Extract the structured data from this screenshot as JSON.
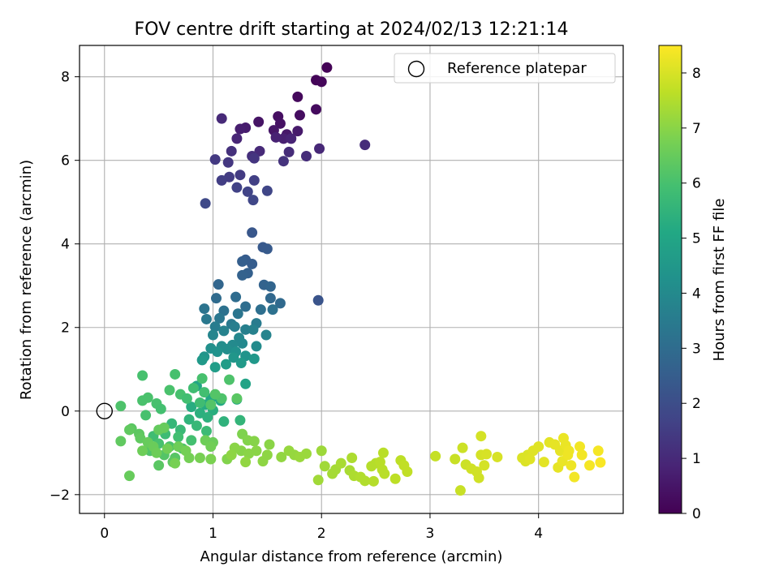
{
  "chart_data": {
    "type": "scatter",
    "title": "FOV centre drift starting at 2024/02/13 12:21:14",
    "xlabel": "Angular distance from reference (arcmin)",
    "ylabel": "Rotation from reference (arcmin)",
    "xlim": [
      -0.23,
      4.78
    ],
    "ylim": [
      -2.45,
      8.75
    ],
    "xticks": [
      0,
      1,
      2,
      3,
      4
    ],
    "yticks": [
      -2,
      0,
      2,
      4,
      6,
      8
    ],
    "xtick_labels": [
      "0",
      "1",
      "2",
      "3",
      "4"
    ],
    "ytick_labels": [
      "−2",
      "0",
      "2",
      "4",
      "6",
      "8"
    ],
    "grid": true,
    "legend": {
      "location": "upper right",
      "entries": [
        "Reference platepar"
      ]
    },
    "reference_point": {
      "x": 0,
      "y": 0,
      "label": "Reference platepar",
      "marker": "open-circle"
    },
    "colorbar": {
      "label": "Hours from first FF file",
      "range": [
        0,
        8.5
      ],
      "ticks": [
        0,
        1,
        2,
        3,
        4,
        5,
        6,
        7,
        8
      ],
      "tick_labels": [
        "0",
        "1",
        "2",
        "3",
        "4",
        "5",
        "6",
        "7",
        "8"
      ],
      "colormap": "viridis"
    },
    "points": [
      {
        "x": 2.05,
        "y": 8.22,
        "c": 0.05
      },
      {
        "x": 1.95,
        "y": 7.92,
        "c": 0.1
      },
      {
        "x": 2.0,
        "y": 7.88,
        "c": 0.15
      },
      {
        "x": 1.78,
        "y": 7.52,
        "c": 0.2
      },
      {
        "x": 1.95,
        "y": 7.22,
        "c": 0.25
      },
      {
        "x": 1.8,
        "y": 7.08,
        "c": 0.3
      },
      {
        "x": 1.6,
        "y": 7.05,
        "c": 0.35
      },
      {
        "x": 1.62,
        "y": 6.88,
        "c": 0.4
      },
      {
        "x": 1.42,
        "y": 6.92,
        "c": 0.45
      },
      {
        "x": 1.56,
        "y": 6.72,
        "c": 0.5
      },
      {
        "x": 1.68,
        "y": 6.62,
        "c": 0.55
      },
      {
        "x": 1.78,
        "y": 6.7,
        "c": 0.6
      },
      {
        "x": 1.3,
        "y": 6.78,
        "c": 0.65
      },
      {
        "x": 1.25,
        "y": 6.75,
        "c": 0.7
      },
      {
        "x": 1.65,
        "y": 6.52,
        "c": 0.75
      },
      {
        "x": 1.58,
        "y": 6.55,
        "c": 0.8
      },
      {
        "x": 1.72,
        "y": 6.52,
        "c": 0.85
      },
      {
        "x": 1.22,
        "y": 6.52,
        "c": 0.9
      },
      {
        "x": 1.98,
        "y": 6.28,
        "c": 0.95
      },
      {
        "x": 1.43,
        "y": 6.22,
        "c": 1.0
      },
      {
        "x": 1.7,
        "y": 6.2,
        "c": 1.05
      },
      {
        "x": 1.86,
        "y": 6.1,
        "c": 1.1
      },
      {
        "x": 1.36,
        "y": 6.1,
        "c": 1.15
      },
      {
        "x": 1.17,
        "y": 6.22,
        "c": 1.2
      },
      {
        "x": 1.08,
        "y": 7.0,
        "c": 1.0
      },
      {
        "x": 2.4,
        "y": 6.37,
        "c": 1.1
      },
      {
        "x": 1.65,
        "y": 5.98,
        "c": 1.25
      },
      {
        "x": 1.38,
        "y": 6.05,
        "c": 1.3
      },
      {
        "x": 1.14,
        "y": 5.95,
        "c": 1.35
      },
      {
        "x": 1.02,
        "y": 6.02,
        "c": 1.4
      },
      {
        "x": 1.25,
        "y": 5.65,
        "c": 1.45
      },
      {
        "x": 1.15,
        "y": 5.6,
        "c": 1.5
      },
      {
        "x": 1.08,
        "y": 5.52,
        "c": 1.55
      },
      {
        "x": 1.38,
        "y": 5.52,
        "c": 1.6
      },
      {
        "x": 1.22,
        "y": 5.35,
        "c": 1.65
      },
      {
        "x": 1.32,
        "y": 5.25,
        "c": 1.7
      },
      {
        "x": 1.5,
        "y": 5.27,
        "c": 1.75
      },
      {
        "x": 1.37,
        "y": 5.05,
        "c": 1.8
      },
      {
        "x": 0.93,
        "y": 4.97,
        "c": 1.85
      },
      {
        "x": 1.36,
        "y": 4.27,
        "c": 2.3
      },
      {
        "x": 1.46,
        "y": 3.92,
        "c": 2.35
      },
      {
        "x": 1.5,
        "y": 3.88,
        "c": 2.4
      },
      {
        "x": 1.3,
        "y": 3.62,
        "c": 2.45
      },
      {
        "x": 1.36,
        "y": 3.52,
        "c": 2.5
      },
      {
        "x": 1.27,
        "y": 3.58,
        "c": 2.55
      },
      {
        "x": 1.32,
        "y": 3.3,
        "c": 2.6
      },
      {
        "x": 1.27,
        "y": 3.25,
        "c": 2.65
      },
      {
        "x": 1.47,
        "y": 3.02,
        "c": 2.7
      },
      {
        "x": 1.53,
        "y": 2.98,
        "c": 2.75
      },
      {
        "x": 1.05,
        "y": 3.03,
        "c": 2.8
      },
      {
        "x": 1.97,
        "y": 2.65,
        "c": 2.2
      },
      {
        "x": 1.53,
        "y": 2.7,
        "c": 2.85
      },
      {
        "x": 1.62,
        "y": 2.58,
        "c": 2.9
      },
      {
        "x": 1.03,
        "y": 2.7,
        "c": 2.95
      },
      {
        "x": 1.21,
        "y": 2.73,
        "c": 3.0
      },
      {
        "x": 1.3,
        "y": 2.5,
        "c": 3.05
      },
      {
        "x": 1.44,
        "y": 2.43,
        "c": 3.1
      },
      {
        "x": 1.55,
        "y": 2.43,
        "c": 3.15
      },
      {
        "x": 1.1,
        "y": 2.4,
        "c": 3.2
      },
      {
        "x": 0.92,
        "y": 2.45,
        "c": 3.25
      },
      {
        "x": 1.23,
        "y": 2.33,
        "c": 3.3
      },
      {
        "x": 1.06,
        "y": 2.22,
        "c": 3.35
      },
      {
        "x": 0.94,
        "y": 2.2,
        "c": 3.4
      },
      {
        "x": 1.17,
        "y": 2.08,
        "c": 3.45
      },
      {
        "x": 1.4,
        "y": 2.1,
        "c": 3.5
      },
      {
        "x": 1.02,
        "y": 2.02,
        "c": 3.55
      },
      {
        "x": 1.2,
        "y": 2.02,
        "c": 3.6
      },
      {
        "x": 1.3,
        "y": 1.95,
        "c": 3.65
      },
      {
        "x": 1.37,
        "y": 1.95,
        "c": 3.7
      },
      {
        "x": 1.1,
        "y": 1.92,
        "c": 3.75
      },
      {
        "x": 1.49,
        "y": 1.82,
        "c": 3.8
      },
      {
        "x": 1.0,
        "y": 1.82,
        "c": 3.85
      },
      {
        "x": 1.24,
        "y": 1.75,
        "c": 3.9
      },
      {
        "x": 1.27,
        "y": 1.62,
        "c": 3.95
      },
      {
        "x": 1.18,
        "y": 1.58,
        "c": 4.0
      },
      {
        "x": 1.4,
        "y": 1.55,
        "c": 4.05
      },
      {
        "x": 1.08,
        "y": 1.55,
        "c": 4.1
      },
      {
        "x": 1.13,
        "y": 1.48,
        "c": 4.15
      },
      {
        "x": 0.98,
        "y": 1.5,
        "c": 4.2
      },
      {
        "x": 1.21,
        "y": 1.42,
        "c": 4.25
      },
      {
        "x": 1.04,
        "y": 1.42,
        "c": 4.3
      },
      {
        "x": 1.3,
        "y": 1.32,
        "c": 4.35
      },
      {
        "x": 0.92,
        "y": 1.3,
        "c": 4.4
      },
      {
        "x": 1.19,
        "y": 1.28,
        "c": 4.45
      },
      {
        "x": 1.38,
        "y": 1.25,
        "c": 4.5
      },
      {
        "x": 0.9,
        "y": 1.22,
        "c": 4.55
      },
      {
        "x": 1.26,
        "y": 1.15,
        "c": 4.6
      },
      {
        "x": 1.12,
        "y": 1.12,
        "c": 4.65
      },
      {
        "x": 1.02,
        "y": 1.05,
        "c": 4.7
      },
      {
        "x": 1.3,
        "y": 0.65,
        "c": 4.9
      },
      {
        "x": 0.85,
        "y": 0.6,
        "c": 4.95
      },
      {
        "x": 1.03,
        "y": 0.35,
        "c": 5.0
      },
      {
        "x": 0.98,
        "y": 0.3,
        "c": 5.05
      },
      {
        "x": 1.22,
        "y": 0.28,
        "c": 5.1
      },
      {
        "x": 1.07,
        "y": 0.25,
        "c": 5.15
      },
      {
        "x": 0.93,
        "y": 0.15,
        "c": 5.2
      },
      {
        "x": 0.8,
        "y": 0.1,
        "c": 5.25
      },
      {
        "x": 1.0,
        "y": 0.02,
        "c": 5.3
      },
      {
        "x": 0.88,
        "y": -0.05,
        "c": 5.35
      },
      {
        "x": 0.95,
        "y": -0.15,
        "c": 5.4
      },
      {
        "x": 1.1,
        "y": -0.25,
        "c": 5.45
      },
      {
        "x": 0.78,
        "y": -0.2,
        "c": 5.5
      },
      {
        "x": 1.25,
        "y": -0.22,
        "c": 5.55
      },
      {
        "x": 0.62,
        "y": -0.3,
        "c": 5.6
      },
      {
        "x": 0.85,
        "y": -0.35,
        "c": 5.65
      },
      {
        "x": 0.7,
        "y": -0.45,
        "c": 5.7
      },
      {
        "x": 0.94,
        "y": -0.48,
        "c": 5.75
      },
      {
        "x": 0.56,
        "y": -0.55,
        "c": 5.8
      },
      {
        "x": 0.45,
        "y": -0.6,
        "c": 5.85
      },
      {
        "x": 0.68,
        "y": -0.62,
        "c": 5.9
      },
      {
        "x": 0.8,
        "y": -0.7,
        "c": 5.95
      },
      {
        "x": 0.5,
        "y": -0.78,
        "c": 6.0
      },
      {
        "x": 0.6,
        "y": -0.85,
        "c": 6.05
      },
      {
        "x": 0.72,
        "y": -0.9,
        "c": 6.1
      },
      {
        "x": 0.42,
        "y": -0.95,
        "c": 6.15
      },
      {
        "x": 0.55,
        "y": -1.05,
        "c": 6.2
      },
      {
        "x": 0.65,
        "y": -1.12,
        "c": 6.25
      },
      {
        "x": 0.5,
        "y": -1.3,
        "c": 6.3
      },
      {
        "x": 0.63,
        "y": -1.22,
        "c": 6.35
      },
      {
        "x": 0.35,
        "y": 0.85,
        "c": 6.0
      },
      {
        "x": 0.65,
        "y": 0.88,
        "c": 6.0
      },
      {
        "x": 0.15,
        "y": 0.12,
        "c": 6.1
      },
      {
        "x": 0.35,
        "y": 0.25,
        "c": 6.05
      },
      {
        "x": 0.4,
        "y": 0.32,
        "c": 6.05
      },
      {
        "x": 0.48,
        "y": 0.18,
        "c": 6.0
      },
      {
        "x": 0.52,
        "y": 0.05,
        "c": 5.95
      },
      {
        "x": 0.38,
        "y": -0.1,
        "c": 6.0
      },
      {
        "x": 0.6,
        "y": 0.5,
        "c": 6.05
      },
      {
        "x": 0.7,
        "y": 0.4,
        "c": 6.0
      },
      {
        "x": 0.76,
        "y": 0.3,
        "c": 5.9
      },
      {
        "x": 0.88,
        "y": 0.2,
        "c": 5.85
      },
      {
        "x": 0.92,
        "y": 0.45,
        "c": 5.9
      },
      {
        "x": 0.82,
        "y": 0.55,
        "c": 5.85
      },
      {
        "x": 0.9,
        "y": 0.78,
        "c": 6.0
      },
      {
        "x": 1.08,
        "y": 0.3,
        "c": 6.1
      },
      {
        "x": 1.02,
        "y": 0.4,
        "c": 6.2
      },
      {
        "x": 1.15,
        "y": 0.75,
        "c": 6.1
      },
      {
        "x": 1.22,
        "y": 0.3,
        "c": 6.3
      },
      {
        "x": 0.98,
        "y": 0.15,
        "c": 6.2
      },
      {
        "x": 0.25,
        "y": -0.42,
        "c": 6.3
      },
      {
        "x": 0.23,
        "y": -0.45,
        "c": 6.4
      },
      {
        "x": 0.32,
        "y": -0.55,
        "c": 6.35
      },
      {
        "x": 0.33,
        "y": -0.65,
        "c": 6.4
      },
      {
        "x": 0.15,
        "y": -0.72,
        "c": 6.4
      },
      {
        "x": 0.5,
        "y": -0.45,
        "c": 6.45
      },
      {
        "x": 0.55,
        "y": -0.4,
        "c": 6.5
      },
      {
        "x": 0.4,
        "y": -0.75,
        "c": 6.5
      },
      {
        "x": 0.45,
        "y": -0.85,
        "c": 6.55
      },
      {
        "x": 0.35,
        "y": -0.95,
        "c": 6.6
      },
      {
        "x": 0.48,
        "y": -1.0,
        "c": 6.6
      },
      {
        "x": 0.58,
        "y": -0.9,
        "c": 6.65
      },
      {
        "x": 0.68,
        "y": -0.85,
        "c": 6.6
      },
      {
        "x": 0.75,
        "y": -0.95,
        "c": 6.7
      },
      {
        "x": 0.78,
        "y": -1.12,
        "c": 6.7
      },
      {
        "x": 0.88,
        "y": -1.12,
        "c": 6.75
      },
      {
        "x": 0.98,
        "y": -1.15,
        "c": 6.8
      },
      {
        "x": 0.65,
        "y": -1.25,
        "c": 6.75
      },
      {
        "x": 0.23,
        "y": -1.55,
        "c": 6.5
      },
      {
        "x": 0.93,
        "y": -0.7,
        "c": 6.6
      },
      {
        "x": 1.0,
        "y": -0.75,
        "c": 6.55
      },
      {
        "x": 0.98,
        "y": -0.85,
        "c": 6.65
      },
      {
        "x": 1.13,
        "y": -1.15,
        "c": 6.9
      },
      {
        "x": 1.27,
        "y": -0.55,
        "c": 6.85
      },
      {
        "x": 1.32,
        "y": -0.7,
        "c": 6.9
      },
      {
        "x": 1.38,
        "y": -0.72,
        "c": 6.95
      },
      {
        "x": 1.26,
        "y": -0.95,
        "c": 6.95
      },
      {
        "x": 1.33,
        "y": -1.02,
        "c": 7.0
      },
      {
        "x": 1.4,
        "y": -0.95,
        "c": 7.0
      },
      {
        "x": 1.52,
        "y": -0.8,
        "c": 7.0
      },
      {
        "x": 1.5,
        "y": -1.05,
        "c": 7.05
      },
      {
        "x": 1.46,
        "y": -1.2,
        "c": 7.05
      },
      {
        "x": 1.2,
        "y": -0.88,
        "c": 7.0
      },
      {
        "x": 1.17,
        "y": -1.05,
        "c": 7.05
      },
      {
        "x": 1.3,
        "y": -1.22,
        "c": 7.1
      },
      {
        "x": 1.63,
        "y": -1.1,
        "c": 7.1
      },
      {
        "x": 1.7,
        "y": -0.95,
        "c": 7.15
      },
      {
        "x": 1.75,
        "y": -1.05,
        "c": 7.15
      },
      {
        "x": 1.8,
        "y": -1.1,
        "c": 7.2
      },
      {
        "x": 1.86,
        "y": -1.02,
        "c": 7.2
      },
      {
        "x": 2.0,
        "y": -0.95,
        "c": 7.25
      },
      {
        "x": 2.03,
        "y": -1.32,
        "c": 7.3
      },
      {
        "x": 1.97,
        "y": -1.65,
        "c": 7.3
      },
      {
        "x": 2.1,
        "y": -1.5,
        "c": 7.35
      },
      {
        "x": 2.13,
        "y": -1.4,
        "c": 7.35
      },
      {
        "x": 2.18,
        "y": -1.25,
        "c": 7.4
      },
      {
        "x": 2.26,
        "y": -1.42,
        "c": 7.4
      },
      {
        "x": 2.28,
        "y": -1.12,
        "c": 7.45
      },
      {
        "x": 2.3,
        "y": -1.55,
        "c": 7.45
      },
      {
        "x": 2.36,
        "y": -1.58,
        "c": 7.5
      },
      {
        "x": 2.4,
        "y": -1.67,
        "c": 7.5
      },
      {
        "x": 2.46,
        "y": -1.32,
        "c": 7.55
      },
      {
        "x": 2.5,
        "y": -1.25,
        "c": 7.55
      },
      {
        "x": 2.48,
        "y": -1.68,
        "c": 7.55
      },
      {
        "x": 2.54,
        "y": -1.22,
        "c": 7.6
      },
      {
        "x": 2.56,
        "y": -1.4,
        "c": 7.6
      },
      {
        "x": 2.58,
        "y": -1.5,
        "c": 7.6
      },
      {
        "x": 2.57,
        "y": -1.0,
        "c": 7.6
      },
      {
        "x": 2.68,
        "y": -1.62,
        "c": 7.65
      },
      {
        "x": 2.73,
        "y": -1.18,
        "c": 7.65
      },
      {
        "x": 2.76,
        "y": -1.3,
        "c": 7.7
      },
      {
        "x": 2.79,
        "y": -1.45,
        "c": 7.7
      },
      {
        "x": 3.05,
        "y": -1.08,
        "c": 7.75
      },
      {
        "x": 3.23,
        "y": -1.15,
        "c": 7.8
      },
      {
        "x": 3.28,
        "y": -1.9,
        "c": 7.8
      },
      {
        "x": 3.3,
        "y": -0.88,
        "c": 7.85
      },
      {
        "x": 3.33,
        "y": -1.28,
        "c": 7.85
      },
      {
        "x": 3.38,
        "y": -1.38,
        "c": 7.9
      },
      {
        "x": 3.43,
        "y": -1.45,
        "c": 7.9
      },
      {
        "x": 3.45,
        "y": -1.6,
        "c": 7.9
      },
      {
        "x": 3.47,
        "y": -1.05,
        "c": 7.95
      },
      {
        "x": 3.47,
        "y": -0.6,
        "c": 7.95
      },
      {
        "x": 3.5,
        "y": -1.3,
        "c": 7.95
      },
      {
        "x": 3.52,
        "y": -1.03,
        "c": 8.0
      },
      {
        "x": 3.62,
        "y": -1.1,
        "c": 8.0
      },
      {
        "x": 3.85,
        "y": -1.12,
        "c": 8.05
      },
      {
        "x": 3.88,
        "y": -1.2,
        "c": 8.05
      },
      {
        "x": 3.9,
        "y": -1.05,
        "c": 8.05
      },
      {
        "x": 3.92,
        "y": -1.15,
        "c": 8.1
      },
      {
        "x": 3.95,
        "y": -0.95,
        "c": 8.1
      },
      {
        "x": 4.0,
        "y": -0.85,
        "c": 8.1
      },
      {
        "x": 4.05,
        "y": -1.22,
        "c": 8.15
      },
      {
        "x": 4.1,
        "y": -0.75,
        "c": 8.15
      },
      {
        "x": 4.15,
        "y": -0.8,
        "c": 8.2
      },
      {
        "x": 4.18,
        "y": -1.35,
        "c": 8.2
      },
      {
        "x": 4.2,
        "y": -0.95,
        "c": 8.2
      },
      {
        "x": 4.22,
        "y": -1.2,
        "c": 8.25
      },
      {
        "x": 4.23,
        "y": -0.65,
        "c": 8.25
      },
      {
        "x": 4.25,
        "y": -0.82,
        "c": 8.25
      },
      {
        "x": 4.27,
        "y": -1.05,
        "c": 8.3
      },
      {
        "x": 4.28,
        "y": -0.95,
        "c": 8.3
      },
      {
        "x": 4.3,
        "y": -1.3,
        "c": 8.3
      },
      {
        "x": 4.33,
        "y": -1.58,
        "c": 8.35
      },
      {
        "x": 4.38,
        "y": -0.85,
        "c": 8.35
      },
      {
        "x": 4.4,
        "y": -1.05,
        "c": 8.35
      },
      {
        "x": 4.47,
        "y": -1.3,
        "c": 8.4
      },
      {
        "x": 4.55,
        "y": -0.95,
        "c": 8.4
      },
      {
        "x": 4.57,
        "y": -1.23,
        "c": 8.45
      }
    ]
  }
}
